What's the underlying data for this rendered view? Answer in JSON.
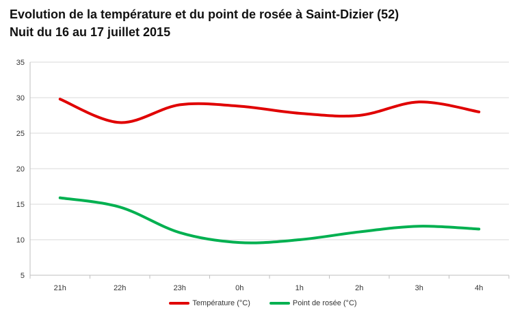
{
  "chart_data": {
    "type": "line",
    "title": "Evolution de la température et du point de rosée à Saint-Dizier (52)",
    "subtitle": "Nuit du 16 au 17 juillet 2015",
    "xlabel": "",
    "ylabel": "",
    "categories": [
      "21h",
      "22h",
      "23h",
      "0h",
      "1h",
      "2h",
      "3h",
      "4h"
    ],
    "ylim": [
      5,
      35
    ],
    "yticks": [
      5,
      10,
      15,
      20,
      25,
      30,
      35
    ],
    "grid": true,
    "legend": "bottom",
    "series": [
      {
        "name": "Température (°C)",
        "color": "#e00000",
        "values": [
          29.8,
          26.5,
          29.0,
          28.8,
          27.8,
          27.5,
          29.4,
          28.0
        ]
      },
      {
        "name": "Point de rosée (°C)",
        "color": "#00b050",
        "values": [
          15.9,
          14.6,
          11.0,
          9.6,
          10.0,
          11.1,
          11.9,
          11.5
        ]
      }
    ]
  }
}
